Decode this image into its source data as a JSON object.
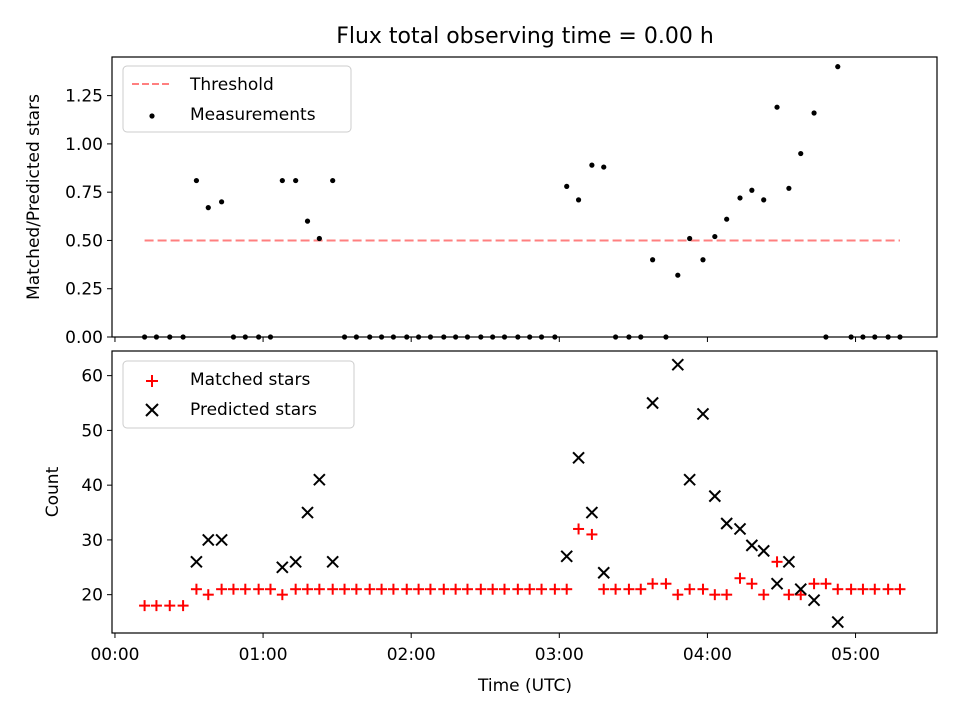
{
  "title": "Flux total observing time = 0.00 h",
  "colors": {
    "threshold": "#ff7f7f",
    "matched": "#ff0000",
    "predicted": "#000000",
    "measurement": "#000000"
  },
  "chart_data": [
    {
      "type": "scatter",
      "ylabel": "Matched/Predicted stars",
      "xlim": [
        -0.02,
        5.55
      ],
      "ylim": [
        0,
        1.45
      ],
      "yticks": [
        0.0,
        0.25,
        0.5,
        0.75,
        1.0,
        1.25
      ],
      "ytick_labels": [
        "0.00",
        "0.25",
        "0.50",
        "0.75",
        "1.00",
        "1.25"
      ],
      "legend": {
        "placement": "upper-left",
        "entries": [
          "Threshold",
          "Measurements"
        ]
      },
      "threshold": {
        "name": "Threshold",
        "x": [
          0.2,
          5.3
        ],
        "y": 0.5
      },
      "measurements": {
        "name": "Measurements",
        "x": [
          0.2,
          0.28,
          0.37,
          0.46,
          0.55,
          0.63,
          0.72,
          0.8,
          0.88,
          0.97,
          1.05,
          1.13,
          1.22,
          1.3,
          1.38,
          1.47,
          1.55,
          1.63,
          1.72,
          1.8,
          1.88,
          1.97,
          2.05,
          2.13,
          2.22,
          2.3,
          2.38,
          2.47,
          2.55,
          2.63,
          2.72,
          2.8,
          2.88,
          2.97,
          3.05,
          3.13,
          3.22,
          3.3,
          3.38,
          3.47,
          3.55,
          3.63,
          3.72,
          3.8,
          3.88,
          3.97,
          4.05,
          4.13,
          4.22,
          4.3,
          4.38,
          4.47,
          4.55,
          4.63,
          4.72,
          4.8,
          4.88,
          4.97,
          5.05,
          5.13,
          5.22,
          5.3
        ],
        "y": [
          0,
          0,
          0,
          0,
          0.81,
          0.67,
          0.7,
          0,
          0,
          0,
          0,
          0.81,
          0.81,
          0.6,
          0.51,
          0.81,
          0,
          0,
          0,
          0,
          0,
          0,
          0,
          0,
          0,
          0,
          0,
          0,
          0,
          0,
          0,
          0,
          0,
          0,
          0.78,
          0.71,
          0.89,
          0.88,
          0,
          0,
          0,
          0.4,
          0,
          0.32,
          0.51,
          0.4,
          0.52,
          0.61,
          0.72,
          0.76,
          0.71,
          1.19,
          0.77,
          0.95,
          1.16,
          0,
          1.4,
          0,
          0,
          0,
          0,
          0
        ]
      }
    },
    {
      "type": "scatter",
      "title": "",
      "xlabel": "Time (UTC)",
      "ylabel": "Count",
      "xlim": [
        -0.02,
        5.55
      ],
      "ylim": [
        13,
        64.5
      ],
      "xticks": [
        0,
        1,
        2,
        3,
        4,
        5
      ],
      "xtick_labels": [
        "00:00",
        "01:00",
        "02:00",
        "03:00",
        "04:00",
        "05:00"
      ],
      "yticks": [
        20,
        30,
        40,
        50,
        60
      ],
      "ytick_labels": [
        "20",
        "30",
        "40",
        "50",
        "60"
      ],
      "legend": {
        "placement": "upper-left",
        "entries": [
          "Matched stars",
          "Predicted stars"
        ]
      },
      "series": [
        {
          "name": "Matched stars",
          "marker": "+",
          "x": [
            0.2,
            0.28,
            0.37,
            0.46,
            0.55,
            0.63,
            0.72,
            0.8,
            0.88,
            0.97,
            1.05,
            1.13,
            1.22,
            1.3,
            1.38,
            1.47,
            1.55,
            1.63,
            1.72,
            1.8,
            1.88,
            1.97,
            2.05,
            2.13,
            2.22,
            2.3,
            2.38,
            2.47,
            2.55,
            2.63,
            2.72,
            2.8,
            2.88,
            2.97,
            3.05,
            3.13,
            3.22,
            3.3,
            3.38,
            3.47,
            3.55,
            3.63,
            3.72,
            3.8,
            3.88,
            3.97,
            4.05,
            4.13,
            4.22,
            4.3,
            4.38,
            4.47,
            4.55,
            4.63,
            4.72,
            4.8,
            4.88,
            4.97,
            5.05,
            5.13,
            5.22,
            5.3
          ],
          "values": [
            18,
            18,
            18,
            18,
            21,
            20,
            21,
            21,
            21,
            21,
            21,
            20,
            21,
            21,
            21,
            21,
            21,
            21,
            21,
            21,
            21,
            21,
            21,
            21,
            21,
            21,
            21,
            21,
            21,
            21,
            21,
            21,
            21,
            21,
            21,
            32,
            31,
            21,
            21,
            21,
            21,
            22,
            22,
            20,
            21,
            21,
            20,
            20,
            23,
            22,
            20,
            26,
            20,
            20,
            22,
            22,
            21,
            21,
            21,
            21,
            21,
            21
          ]
        },
        {
          "name": "Predicted stars",
          "marker": "x",
          "x": [
            0.55,
            0.63,
            0.72,
            1.13,
            1.22,
            1.3,
            1.38,
            1.47,
            3.05,
            3.13,
            3.22,
            3.3,
            3.63,
            3.8,
            3.88,
            3.97,
            4.05,
            4.13,
            4.22,
            4.3,
            4.38,
            4.47,
            4.55,
            4.63,
            4.72,
            4.88
          ],
          "values": [
            26,
            30,
            30,
            25,
            26,
            35,
            41,
            26,
            27,
            45,
            35,
            24,
            55,
            62,
            41,
            53,
            38,
            33,
            32,
            29,
            28,
            22,
            26,
            21,
            19,
            15
          ]
        }
      ]
    }
  ]
}
